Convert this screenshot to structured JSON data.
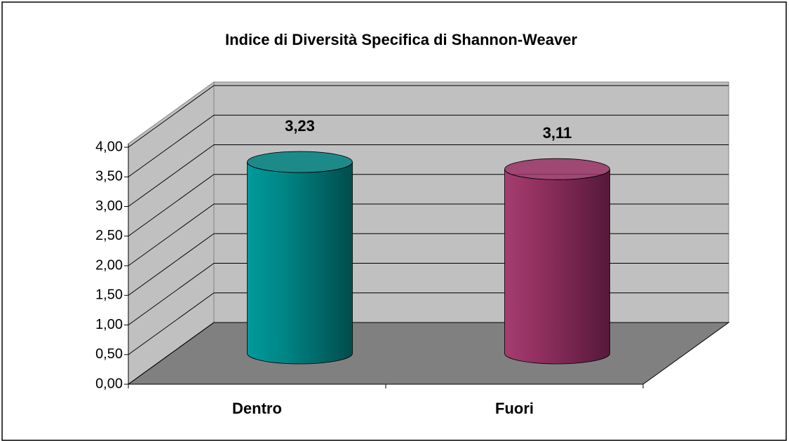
{
  "chart_data": {
    "type": "bar3d",
    "title": "Indice di Diversità Specifica di Shannon-Weaver",
    "categories": [
      "Dentro",
      "Fuori"
    ],
    "values": [
      3.23,
      3.11
    ],
    "value_labels": [
      "3,23",
      "3,11"
    ],
    "colors": [
      "#008080",
      "#993366"
    ],
    "ylim": [
      0,
      4
    ],
    "yticks": [
      {
        "value": 0,
        "label": "0,00"
      },
      {
        "value": 0.5,
        "label": "0,50"
      },
      {
        "value": 1,
        "label": "1,00"
      },
      {
        "value": 1.5,
        "label": "1,50"
      },
      {
        "value": 2,
        "label": "2,00"
      },
      {
        "value": 2.5,
        "label": "2,50"
      },
      {
        "value": 3,
        "label": "3,00"
      },
      {
        "value": 3.5,
        "label": "3,50"
      },
      {
        "value": 4,
        "label": "4,00"
      }
    ],
    "grid": true
  }
}
